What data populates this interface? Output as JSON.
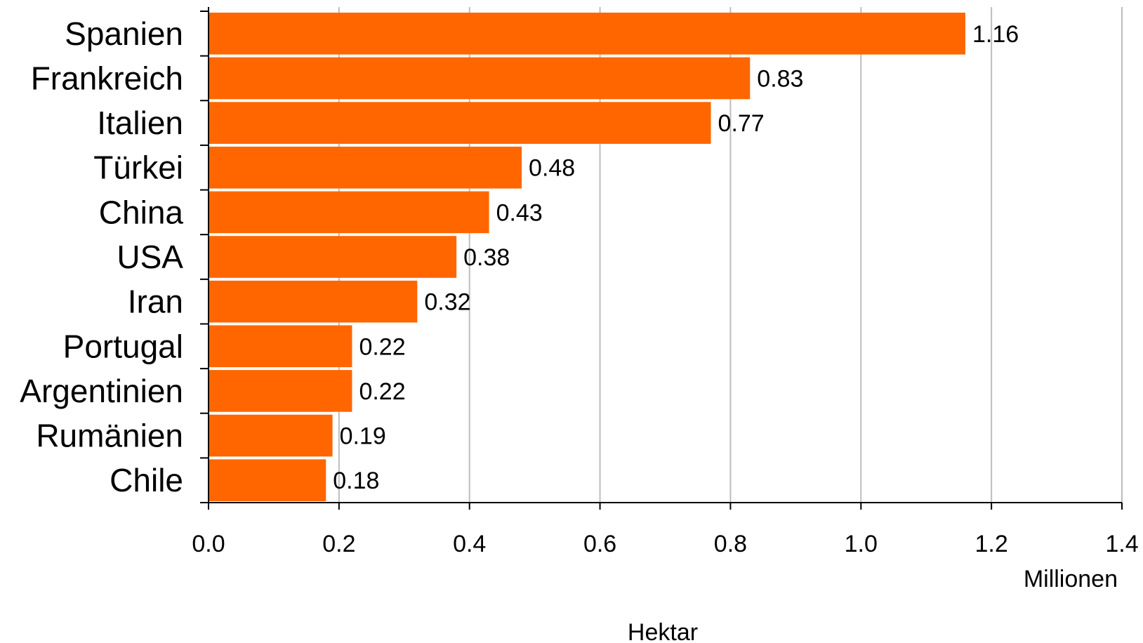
{
  "chart_data": {
    "type": "bar",
    "orientation": "horizontal",
    "categories": [
      "Spanien",
      "Frankreich",
      "Italien",
      "Türkei",
      "China",
      "USA",
      "Iran",
      "Portugal",
      "Argentinien",
      "Rumänien",
      "Chile"
    ],
    "values": [
      1.16,
      0.83,
      0.77,
      0.48,
      0.43,
      0.38,
      0.32,
      0.22,
      0.22,
      0.19,
      0.18
    ],
    "value_labels": [
      "1.16",
      "0.83",
      "0.77",
      "0.48",
      "0.43",
      "0.38",
      "0.32",
      "0.22",
      "0.22",
      "0.19",
      "0.18"
    ],
    "x_ticks": [
      "0.0",
      "0.2",
      "0.4",
      "0.6",
      "0.8",
      "1.0",
      "1.2",
      "1.4"
    ],
    "xlim": [
      0,
      1.4
    ],
    "x_unit_label": "Millionen",
    "xlabel": "Hektar",
    "bar_color": "#FF6600",
    "grid": true
  }
}
